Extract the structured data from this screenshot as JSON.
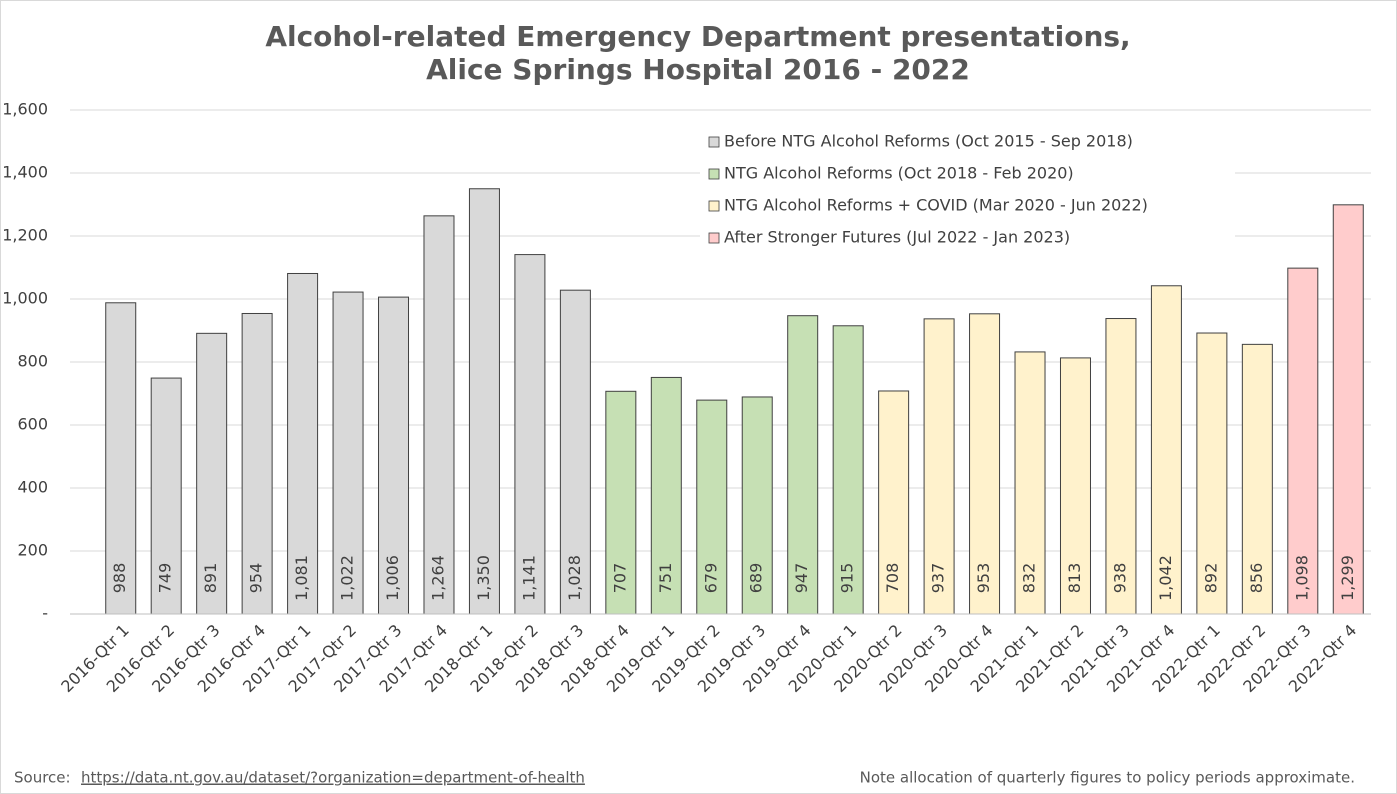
{
  "chart_data": {
    "type": "bar",
    "title": [
      "Alcohol-related Emergency Department presentations,",
      "Alice Springs Hospital 2016 - 2022"
    ],
    "categories": [
      "2016-Qtr 1",
      "2016-Qtr 2",
      "2016-Qtr 3",
      "2016-Qtr 4",
      "2017-Qtr 1",
      "2017-Qtr 2",
      "2017-Qtr 3",
      "2017-Qtr 4",
      "2018-Qtr 1",
      "2018-Qtr 2",
      "2018-Qtr 3",
      "2018-Qtr 4",
      "2019-Qtr 1",
      "2019-Qtr 2",
      "2019-Qtr 3",
      "2019-Qtr 4",
      "2020-Qtr 1",
      "2020-Qtr 2",
      "2020-Qtr 3",
      "2020-Qtr 4",
      "2021-Qtr 1",
      "2021-Qtr 2",
      "2021-Qtr 3",
      "2021-Qtr 4",
      "2022-Qtr 1",
      "2022-Qtr 2",
      "2022-Qtr 3",
      "2022-Qtr 4"
    ],
    "series": [
      {
        "name": "Before NTG Alcohol Reforms (Oct 2015 - Sep 2018)",
        "color": "#d9d9d9",
        "values": [
          988,
          749,
          891,
          954,
          1081,
          1022,
          1006,
          1264,
          1350,
          1141,
          1028,
          null,
          null,
          null,
          null,
          null,
          null,
          null,
          null,
          null,
          null,
          null,
          null,
          null,
          null,
          null,
          null,
          null
        ],
        "value_labels": [
          "988",
          "749",
          "891",
          "954",
          "1,081",
          "1,022",
          "1,006",
          "1,264",
          "1,350",
          "1,141",
          "1,028",
          null,
          null,
          null,
          null,
          null,
          null,
          null,
          null,
          null,
          null,
          null,
          null,
          null,
          null,
          null,
          null,
          null
        ]
      },
      {
        "name": "NTG Alcohol Reforms (Oct 2018 - Feb 2020)",
        "color": "#c6e0b4",
        "values": [
          null,
          null,
          null,
          null,
          null,
          null,
          null,
          null,
          null,
          null,
          null,
          707,
          751,
          679,
          689,
          947,
          915,
          null,
          null,
          null,
          null,
          null,
          null,
          null,
          null,
          null,
          null,
          null
        ],
        "value_labels": [
          null,
          null,
          null,
          null,
          null,
          null,
          null,
          null,
          null,
          null,
          null,
          "707",
          "751",
          "679",
          "689",
          "947",
          "915",
          null,
          null,
          null,
          null,
          null,
          null,
          null,
          null,
          null,
          null,
          null
        ]
      },
      {
        "name": "NTG Alcohol Reforms + COVID (Mar 2020 - Jun 2022)",
        "color": "#fff2cc",
        "values": [
          null,
          null,
          null,
          null,
          null,
          null,
          null,
          null,
          null,
          null,
          null,
          null,
          null,
          null,
          null,
          null,
          null,
          708,
          937,
          953,
          832,
          813,
          938,
          1042,
          892,
          856,
          null,
          null
        ],
        "value_labels": [
          null,
          null,
          null,
          null,
          null,
          null,
          null,
          null,
          null,
          null,
          null,
          null,
          null,
          null,
          null,
          null,
          null,
          "708",
          "937",
          "953",
          "832",
          "813",
          "938",
          "1,042",
          "892",
          "856",
          null,
          null
        ]
      },
      {
        "name": "After Stronger Futures (Jul 2022 - Jan 2023)",
        "color": "#ffcccc",
        "values": [
          null,
          null,
          null,
          null,
          null,
          null,
          null,
          null,
          null,
          null,
          null,
          null,
          null,
          null,
          null,
          null,
          null,
          null,
          null,
          null,
          null,
          null,
          null,
          null,
          null,
          null,
          1098,
          1299
        ],
        "value_labels": [
          null,
          null,
          null,
          null,
          null,
          null,
          null,
          null,
          null,
          null,
          null,
          null,
          null,
          null,
          null,
          null,
          null,
          null,
          null,
          null,
          null,
          null,
          null,
          null,
          null,
          null,
          "1,098",
          "1,299"
        ]
      }
    ],
    "ylim": [
      0,
      1600
    ],
    "yticks": [
      {
        "value": 0,
        "label": "-"
      },
      200,
      400,
      600,
      800,
      {
        "value": 1000,
        "label": "1,000"
      },
      {
        "value": 1200,
        "label": "1,200"
      },
      {
        "value": 1400,
        "label": "1,400"
      },
      {
        "value": 1600,
        "label": "1,600"
      }
    ],
    "grid": true,
    "legend": "top-right",
    "source_label": "Source:",
    "source_url": "https://data.nt.gov.au/dataset/?organization=department-of-health",
    "note": "Note allocation of quarterly figures to policy periods approximate."
  }
}
